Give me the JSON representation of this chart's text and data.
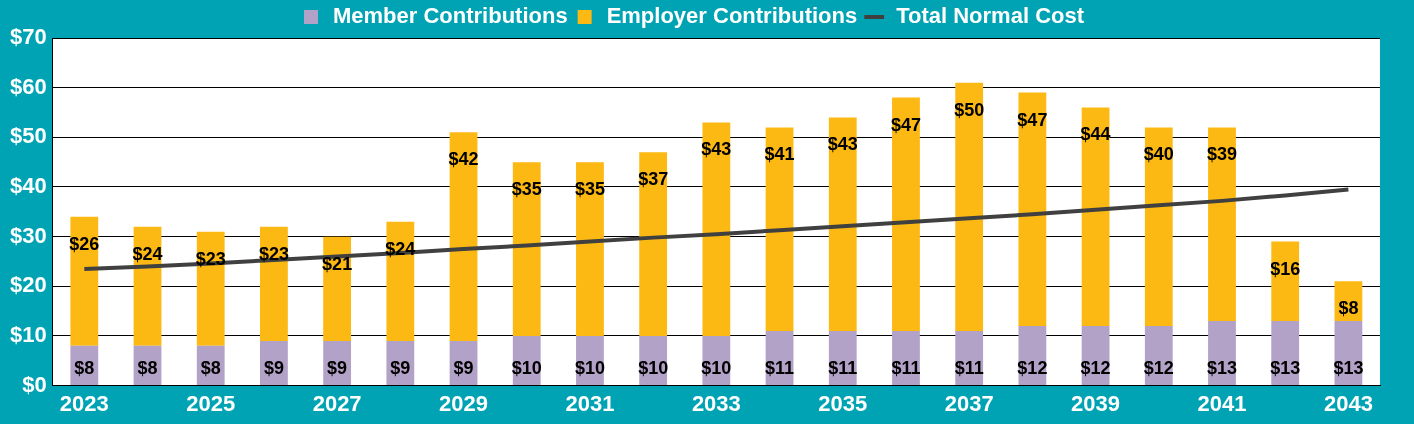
{
  "chart_data": {
    "type": "bar",
    "stacked": true,
    "legend": "top",
    "grid": "y",
    "marker": "none",
    "line_style": "solid",
    "categories": [
      "2023",
      null,
      "2025",
      null,
      "2027",
      null,
      "2029",
      null,
      "2031",
      null,
      "2033",
      null,
      "2035",
      null,
      "2037",
      null,
      "2039",
      null,
      "2041",
      null,
      "2043"
    ],
    "ylim": [
      0,
      70
    ],
    "yticks": [
      {
        "value": 0,
        "label": "$0"
      },
      {
        "value": 10,
        "label": "$10"
      },
      {
        "value": 20,
        "label": "$20"
      },
      {
        "value": 30,
        "label": "$30"
      },
      {
        "value": 40,
        "label": "$40"
      },
      {
        "value": 50,
        "label": "$50"
      },
      {
        "value": 60,
        "label": "$60"
      },
      {
        "value": 70,
        "label": "$70"
      }
    ],
    "series": [
      {
        "name": "Member Contributions",
        "color": "#b3a2c7",
        "values": [
          8,
          8,
          8,
          9,
          9,
          9,
          9,
          10,
          10,
          10,
          10,
          11,
          11,
          11,
          11,
          12,
          12,
          12,
          13,
          13,
          13
        ],
        "value_labels": [
          "$8",
          "$8",
          "$8",
          "$9",
          "$9",
          "$9",
          "$9",
          "$10",
          "$10",
          "$10",
          "$10",
          "$11",
          "$11",
          "$11",
          "$11",
          "$12",
          "$12",
          "$12",
          "$13",
          "$13",
          "$13"
        ]
      },
      {
        "name": "Employer Contributions",
        "color": "#fdb913",
        "values": [
          26,
          24,
          23,
          23,
          21,
          24,
          42,
          35,
          35,
          37,
          43,
          41,
          43,
          47,
          50,
          47,
          44,
          40,
          39,
          16,
          8
        ],
        "value_labels": [
          "$26",
          "$24",
          "$23",
          "$23",
          "$21",
          "$24",
          "$42",
          "$35",
          "$35",
          "$37",
          "$43",
          "$41",
          "$43",
          "$47",
          "$50",
          "$47",
          "$44",
          "$40",
          "$39",
          "$16",
          "$8"
        ]
      },
      {
        "name": "Total Normal Cost",
        "type": "line",
        "color": "#404040",
        "values": [
          23.5,
          24.0,
          24.6,
          25.3,
          26.0,
          26.7,
          27.5,
          28.2,
          29.0,
          29.8,
          30.5,
          31.3,
          32.1,
          32.9,
          33.7,
          34.5,
          35.4,
          36.3,
          37.2,
          38.3,
          39.5
        ]
      }
    ]
  }
}
